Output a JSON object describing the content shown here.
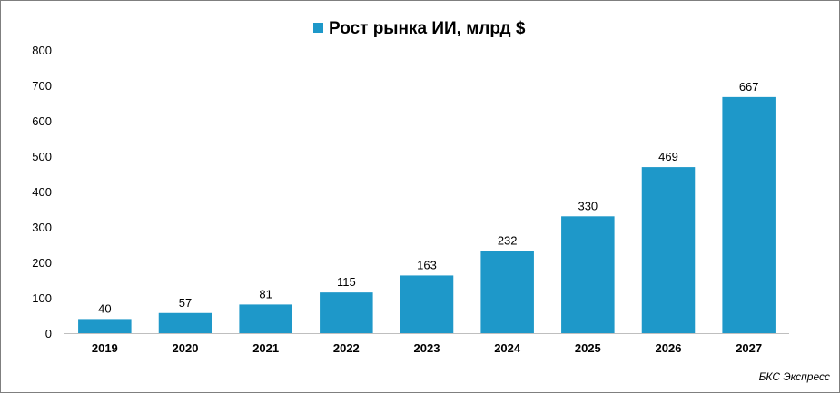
{
  "chart_data": {
    "type": "bar",
    "legend": "Рост рынка ИИ, млрд $",
    "legend_position": "top",
    "categories": [
      "2019",
      "2020",
      "2021",
      "2022",
      "2023",
      "2024",
      "2025",
      "2026",
      "2027"
    ],
    "series": [
      {
        "name": "Рост рынка ИИ, млрд $",
        "values": [
          40,
          57,
          81,
          115,
          163,
          232,
          330,
          469,
          667
        ]
      }
    ],
    "ylim": [
      0,
      800
    ],
    "yticks": [
      0,
      100,
      200,
      300,
      400,
      500,
      600,
      700,
      800
    ],
    "grid": false,
    "bar_color": "#1e98c9"
  },
  "source": "БКС Экспресс"
}
